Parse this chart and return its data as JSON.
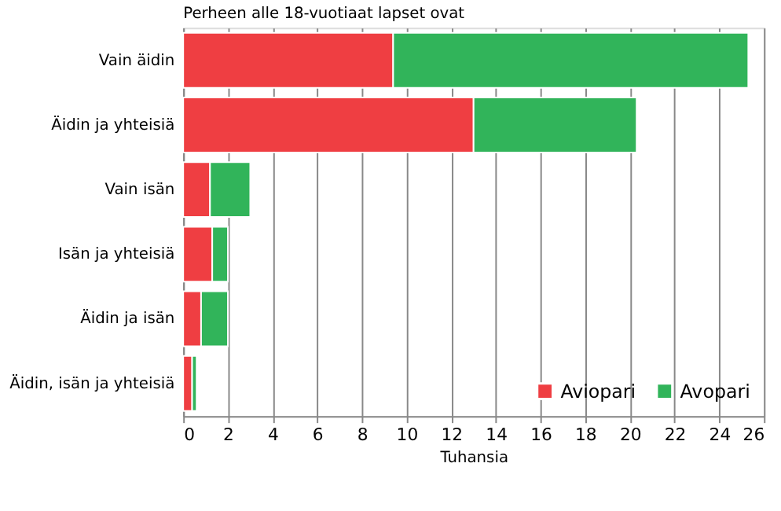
{
  "chart_data": {
    "type": "bar",
    "orientation": "horizontal",
    "stacked": true,
    "title": "Perheen alle 18-vuotiaat lapset ovat",
    "xlabel": "Tuhansia",
    "categories": [
      "Vain äidin",
      "Äidin ja yhteisiä",
      "Vain isän",
      "Isän ja yhteisiä",
      "Äidin ja isän",
      "Äidin, isän ja yhteisiä"
    ],
    "series": [
      {
        "name": "Aviopari",
        "color": "#ef3e42",
        "values": [
          9.4,
          13.0,
          1.2,
          1.3,
          0.8,
          0.4
        ]
      },
      {
        "name": "Avopari",
        "color": "#31b45a",
        "values": [
          15.9,
          7.3,
          1.8,
          0.7,
          1.2,
          0.2
        ]
      }
    ],
    "xlim": [
      0,
      26
    ],
    "xticks": [
      0,
      2,
      4,
      6,
      8,
      10,
      12,
      14,
      16,
      18,
      20,
      22,
      24,
      26
    ],
    "grid": "x",
    "legend": "bottom right"
  }
}
